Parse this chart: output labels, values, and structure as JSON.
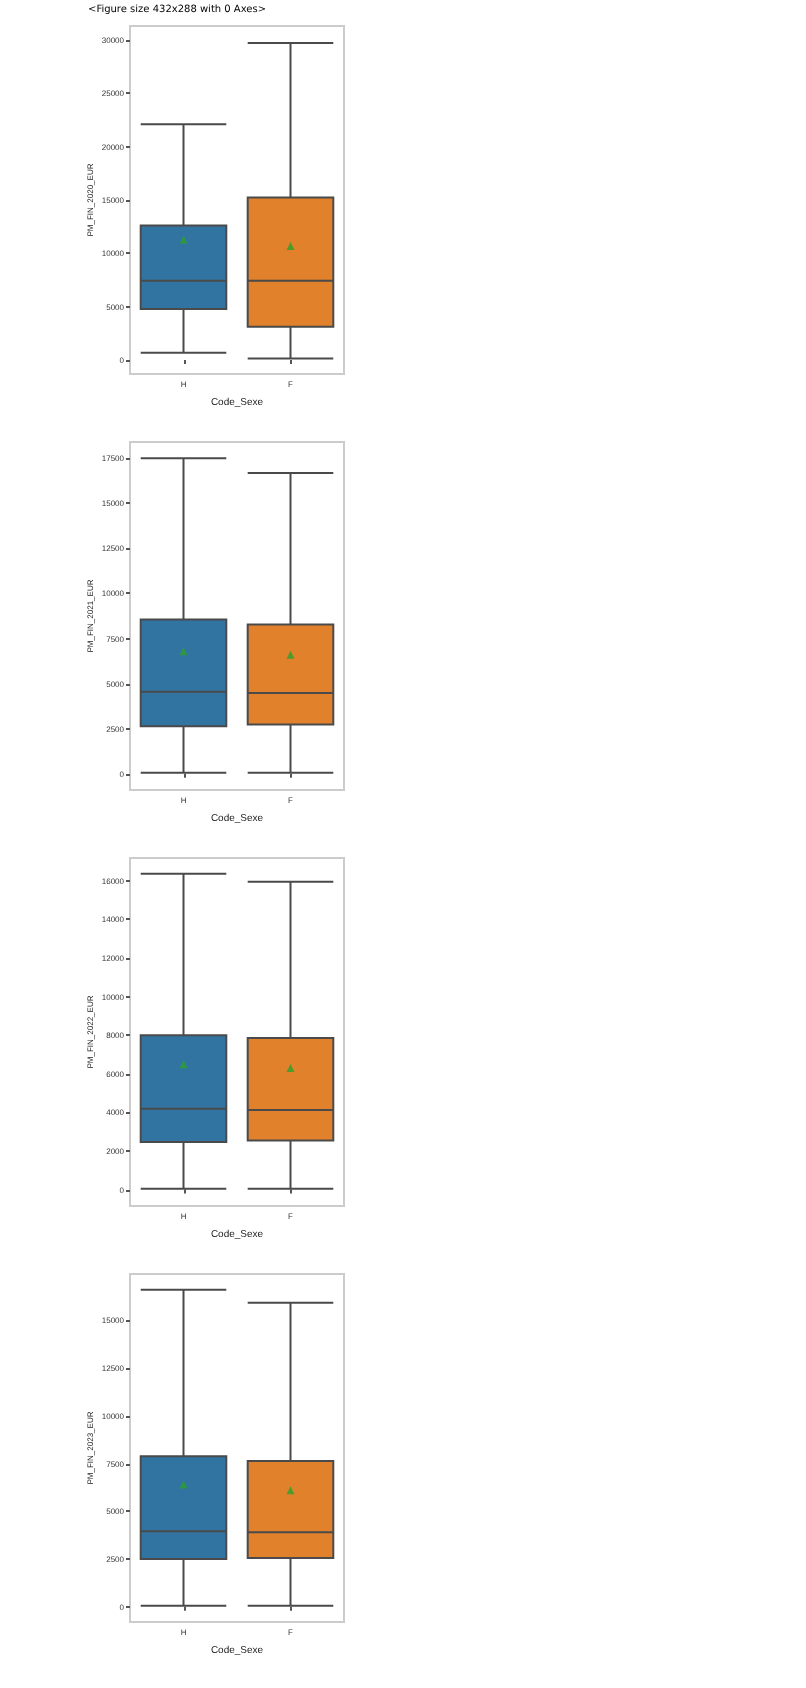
{
  "chart_data": [
    {
      "type": "box",
      "annotations": [
        "<Figure size 432x288 with 0 Axes>"
      ],
      "xlabel": "Code_Sexe",
      "ylabel": "PM_FIN_2020_EUR",
      "categories": [
        "H",
        "F"
      ],
      "colors": [
        "#3274a1",
        "#e1812c"
      ],
      "boxes": [
        {
          "low": 690,
          "q1": 4780,
          "median": 7440,
          "q3": 12600,
          "high": 22100
        },
        {
          "low": 160,
          "q1": 3130,
          "median": 7440,
          "q3": 15240,
          "high": 29700
        }
      ],
      "series": [
        {
          "type": "scatter",
          "color": "#2ca02c",
          "x": [
            "H",
            "F"
          ],
          "values": [
            11300,
            10700
          ]
        }
      ],
      "marker": "triangle",
      "ylim": [
        -1300,
        31300
      ],
      "yticks": [
        0,
        5000,
        10000,
        15000,
        20000,
        25000,
        30000
      ]
    },
    {
      "type": "box",
      "xlabel": "Code_Sexe",
      "ylabel": "PM_FIN_2021_EUR",
      "categories": [
        "H",
        "F"
      ],
      "colors": [
        "#3274a1",
        "#e1812c"
      ],
      "boxes": [
        {
          "low": 50,
          "q1": 2630,
          "median": 4550,
          "q3": 8560,
          "high": 17500
        },
        {
          "low": 50,
          "q1": 2730,
          "median": 4480,
          "q3": 8280,
          "high": 16680
        }
      ],
      "series": [
        {
          "type": "scatter",
          "color": "#2ca02c",
          "x": [
            "H",
            "F"
          ],
          "values": [
            6800,
            6600
          ]
        }
      ],
      "marker": "triangle",
      "ylim": [
        -900,
        18400
      ],
      "yticks": [
        0,
        2500,
        5000,
        7500,
        10000,
        12500,
        15000,
        17500
      ]
    },
    {
      "type": "box",
      "xlabel": "Code_Sexe",
      "ylabel": "PM_FIN_2022_EUR",
      "categories": [
        "H",
        "F"
      ],
      "colors": [
        "#3274a1",
        "#e1812c"
      ],
      "boxes": [
        {
          "low": 50,
          "q1": 2460,
          "median": 4190,
          "q3": 8000,
          "high": 16360
        },
        {
          "low": 50,
          "q1": 2550,
          "median": 4130,
          "q3": 7860,
          "high": 15950
        }
      ],
      "series": [
        {
          "type": "scatter",
          "color": "#2ca02c",
          "x": [
            "H",
            "F"
          ],
          "values": [
            6500,
            6300
          ]
        }
      ],
      "marker": "triangle",
      "ylim": [
        -850,
        17180
      ],
      "yticks": [
        0,
        2000,
        4000,
        6000,
        8000,
        10000,
        12000,
        14000,
        16000
      ]
    },
    {
      "type": "box",
      "xlabel": "Code_Sexe",
      "ylabel": "PM_FIN_2023_EUR",
      "categories": [
        "H",
        "F"
      ],
      "colors": [
        "#3274a1",
        "#e1812c"
      ],
      "boxes": [
        {
          "low": 50,
          "q1": 2500,
          "median": 3960,
          "q3": 7880,
          "high": 16600
        },
        {
          "low": 50,
          "q1": 2550,
          "median": 3900,
          "q3": 7640,
          "high": 15920
        }
      ],
      "series": [
        {
          "type": "scatter",
          "color": "#2ca02c",
          "x": [
            "H",
            "F"
          ],
          "values": [
            6400,
            6100
          ]
        }
      ],
      "marker": "triangle",
      "ylim": [
        -800,
        17430
      ],
      "yticks": [
        0,
        2500,
        5000,
        7500,
        10000,
        12500,
        15000
      ]
    }
  ]
}
